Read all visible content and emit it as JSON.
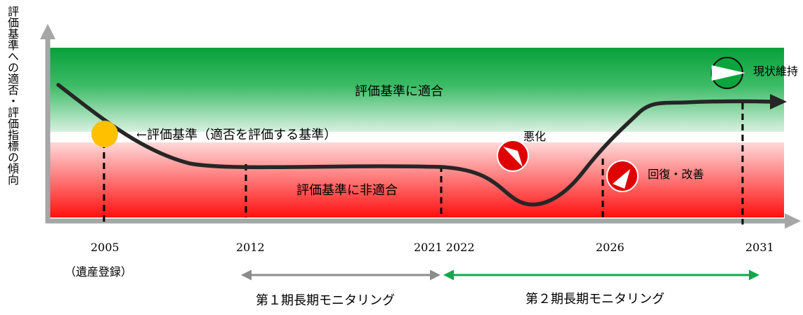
{
  "vertical_axis_label": "評価基準への適否・評価指標の傾向",
  "zones": {
    "good": "評価基準に適合",
    "bad": "評価基準に非適合"
  },
  "criterion_note": "←評価基準（適否を評価する基準）",
  "years": {
    "y2005": "2005",
    "y2005_note": "（遺産登録）",
    "y2012": "2012",
    "y2021_2022": "2021 2022",
    "y2026": "2026",
    "y2031": "2031"
  },
  "periods": {
    "first": "第１期長期モニタリング",
    "second": "第２期長期モニタリング"
  },
  "trend_labels": {
    "worsen": "悪化",
    "recover": "回復・改善",
    "maintain": "現状維持"
  },
  "colors": {
    "green": "#0aa53c",
    "red": "#ff1a1a",
    "axis": "#a6a6a6",
    "curve": "#262626",
    "marker": "#ffc000",
    "period1": "#8c8c8c",
    "period2": "#10a84e"
  }
}
